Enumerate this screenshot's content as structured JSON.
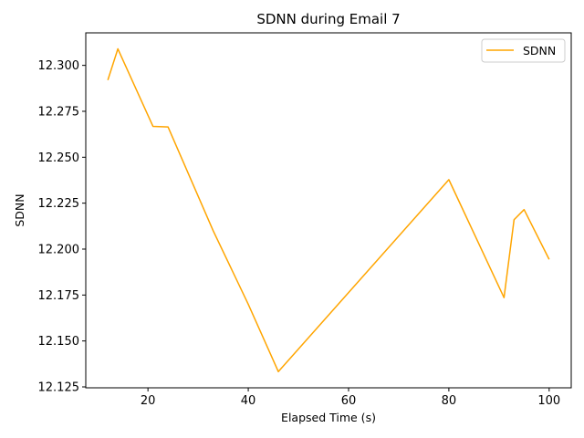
{
  "chart_data": {
    "type": "line",
    "title": "SDNN during Email 7",
    "xlabel": "Elapsed Time (s)",
    "ylabel": "SDNN",
    "xlim": [
      7.6,
      104.4
    ],
    "ylim": [
      12.1245,
      12.3177
    ],
    "xticks": [
      20,
      40,
      60,
      80,
      100
    ],
    "yticks": [
      12.125,
      12.15,
      12.175,
      12.2,
      12.225,
      12.25,
      12.275,
      12.3
    ],
    "xtick_labels": [
      "20",
      "40",
      "60",
      "80",
      "100"
    ],
    "ytick_labels": [
      "12.125",
      "12.150",
      "12.175",
      "12.200",
      "12.225",
      "12.250",
      "12.275",
      "12.300"
    ],
    "grid": false,
    "legend_position": "top-right",
    "series": [
      {
        "name": "SDNN",
        "color": "#ffa500",
        "x": [
          12,
          14,
          21,
          24,
          33,
          40,
          46,
          80,
          91,
          93,
          95,
          100
        ],
        "y": [
          12.292,
          12.309,
          12.2668,
          12.2665,
          12.21,
          12.17,
          12.1333,
          12.2378,
          12.1736,
          12.216,
          12.2215,
          12.1944
        ]
      }
    ]
  }
}
